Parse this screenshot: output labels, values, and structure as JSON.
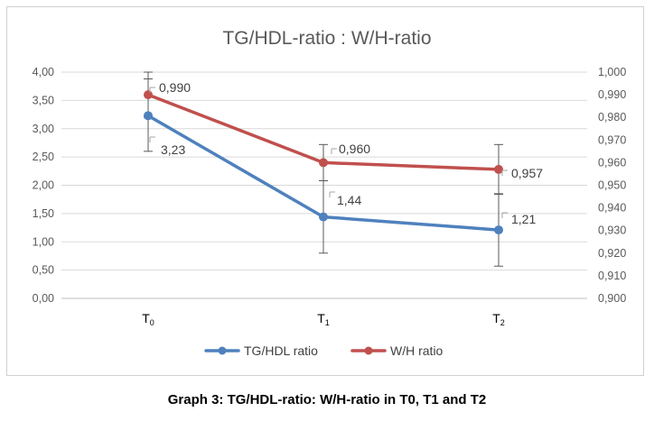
{
  "chart_data": {
    "type": "line",
    "title": "TG/HDL-ratio :  W/H-ratio",
    "categories": [
      {
        "base": "T",
        "sub": "0"
      },
      {
        "base": "T",
        "sub": "1"
      },
      {
        "base": "T",
        "sub": "2"
      }
    ],
    "y_left": {
      "min": 0,
      "max": 4,
      "step": 0.5,
      "ticks": [
        "0,00",
        "0,50",
        "1,00",
        "1,50",
        "2,00",
        "2,50",
        "3,00",
        "3,50",
        "4,00"
      ]
    },
    "y_right": {
      "min": 0.9,
      "max": 1.0,
      "step": 0.01,
      "ticks": [
        "0,900",
        "0,910",
        "0,920",
        "0,930",
        "0,940",
        "0,950",
        "0,960",
        "0,970",
        "0,980",
        "0,990",
        "1,000"
      ]
    },
    "gridlines": true,
    "legend_position": "bottom",
    "series": [
      {
        "name": "TG/HDL ratio",
        "axis": "left",
        "color": "#4f81bd",
        "values": [
          3.23,
          1.44,
          1.21
        ],
        "labels": [
          "3,23",
          "1,44",
          "1,21"
        ],
        "error_low": [
          2.6,
          0.8,
          0.57
        ],
        "error_high": [
          3.88,
          2.08,
          1.85
        ]
      },
      {
        "name": "W/H ratio",
        "axis": "right",
        "color": "#c0504d",
        "values": [
          0.99,
          0.96,
          0.957
        ],
        "labels": [
          "0,990",
          "0,960",
          "0,957"
        ],
        "error_low": [
          0.98,
          0.952,
          0.946
        ],
        "error_high": [
          1.0,
          0.968,
          0.968
        ]
      }
    ]
  },
  "caption": "Graph 3: TG/HDL-ratio: W/H-ratio in T0, T1 and T2"
}
